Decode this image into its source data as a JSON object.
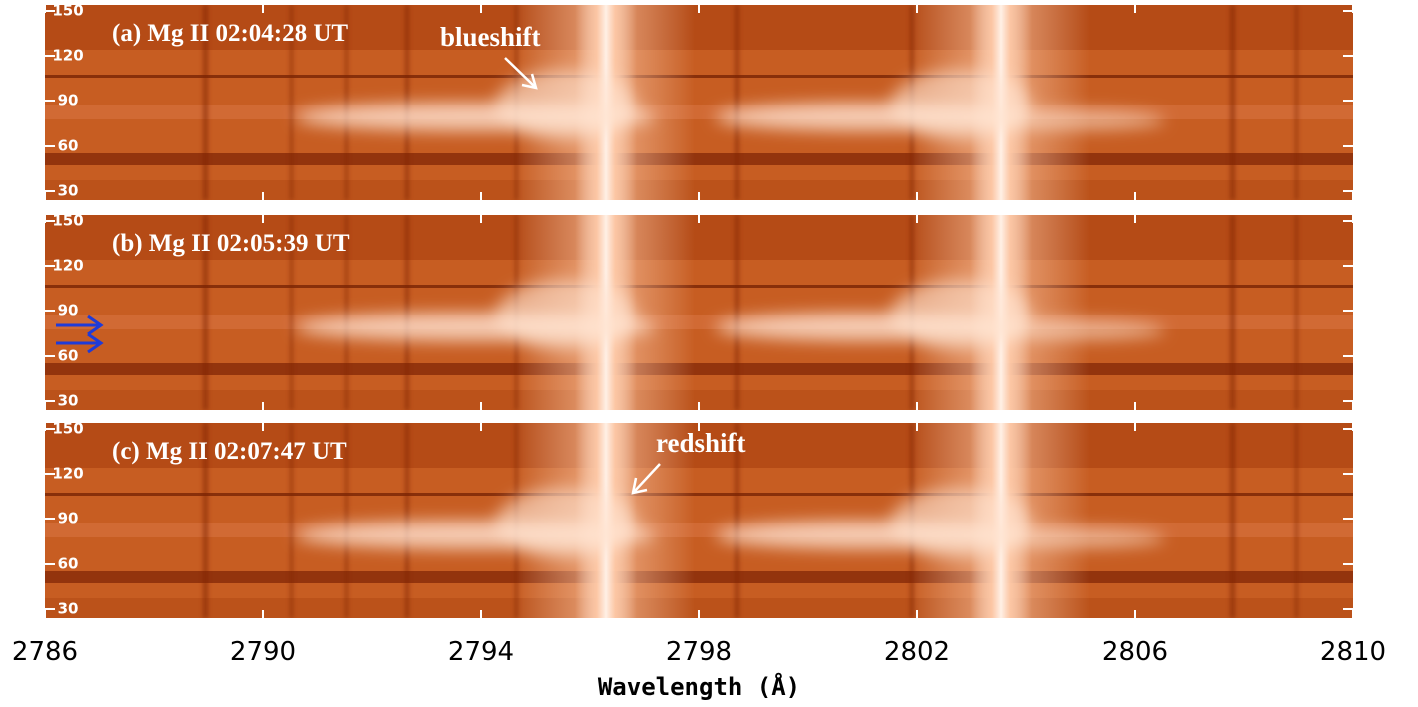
{
  "chart_data": {
    "type": "spectrogram",
    "xlabel": "Wavelength (Å)",
    "xlim": [
      2786,
      2810
    ],
    "xticks": [
      2786,
      2790,
      2794,
      2798,
      2802,
      2806,
      2810
    ],
    "panels": [
      {
        "title": "(a) Mg II 02:04:28 UT",
        "ylim": [
          24,
          154
        ],
        "yticks": [
          30,
          60,
          90,
          120,
          150
        ],
        "annotation": "blueshift"
      },
      {
        "title": "(b) Mg II 02:05:39 UT",
        "ylim": [
          24,
          154
        ],
        "yticks": [
          30,
          60,
          90,
          120,
          150
        ]
      },
      {
        "title": "(c) Mg II 02:07:47 UT",
        "ylim": [
          24,
          154
        ],
        "yticks": [
          30,
          60,
          90,
          120,
          150
        ],
        "annotation": "redshift"
      }
    ]
  }
}
